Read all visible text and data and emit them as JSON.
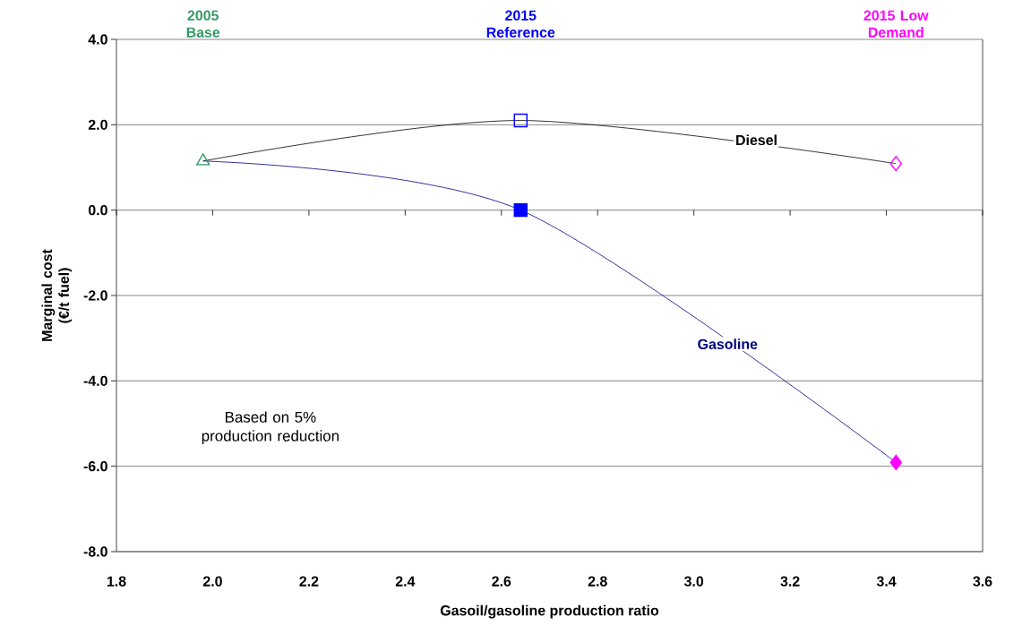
{
  "chart_data": {
    "type": "line",
    "xlabel": "Gasoil/gasoline production ratio",
    "ylabel": "Marginal cost (€/t fuel)",
    "xlim": [
      1.8,
      3.6
    ],
    "ylim": [
      -8,
      4
    ],
    "xticks": [
      {
        "value": 1.8,
        "label": "1.8"
      },
      {
        "value": 2.0,
        "label": "2.0"
      },
      {
        "value": 2.2,
        "label": "2.2"
      },
      {
        "value": 2.4,
        "label": "2.4"
      },
      {
        "value": 2.6,
        "label": "2.6"
      },
      {
        "value": 2.8,
        "label": "2.8"
      },
      {
        "value": 3.0,
        "label": "3.0"
      },
      {
        "value": 3.2,
        "label": "3.2"
      },
      {
        "value": 3.4,
        "label": "3.4"
      },
      {
        "value": 3.6,
        "label": "3.6"
      }
    ],
    "yticks": [
      {
        "value": -8,
        "label": "-8.0"
      },
      {
        "value": -6,
        "label": "-6.0"
      },
      {
        "value": -4,
        "label": "-4.0"
      },
      {
        "value": -2,
        "label": "-2.0"
      },
      {
        "value": 0,
        "label": "0.0"
      },
      {
        "value": 2,
        "label": "2.0"
      },
      {
        "value": 4,
        "label": "4.0"
      }
    ],
    "grid": "y",
    "legend": "top",
    "series": [
      {
        "name": "Diesel",
        "color": "#000000",
        "x": [
          1.98,
          2.64,
          3.42
        ],
        "values": [
          1.15,
          2.1,
          1.09
        ],
        "marker": "none"
      },
      {
        "name": "Gasoline",
        "color": "#000080",
        "x": [
          1.98,
          2.64,
          3.42
        ],
        "values": [
          1.15,
          0.0,
          -5.91
        ],
        "marker": "none"
      },
      {
        "name": "2005 Base",
        "type": "scatter",
        "color": "#339966",
        "x": [
          1.98
        ],
        "values": [
          1.15
        ],
        "marker": "triangle"
      },
      {
        "name": "2015 Reference",
        "type": "scatter",
        "color": "#0000ff",
        "x": [
          2.64,
          2.64
        ],
        "values": [
          2.1,
          0.0
        ],
        "marker": "square"
      },
      {
        "name": "2015 Low Demand",
        "type": "scatter",
        "color": "#ff00ff",
        "x": [
          3.42,
          3.42
        ],
        "values": [
          1.09,
          -5.91
        ],
        "marker": "diamond"
      }
    ],
    "annotations": [
      "Based on 5% production reduction"
    ]
  }
}
